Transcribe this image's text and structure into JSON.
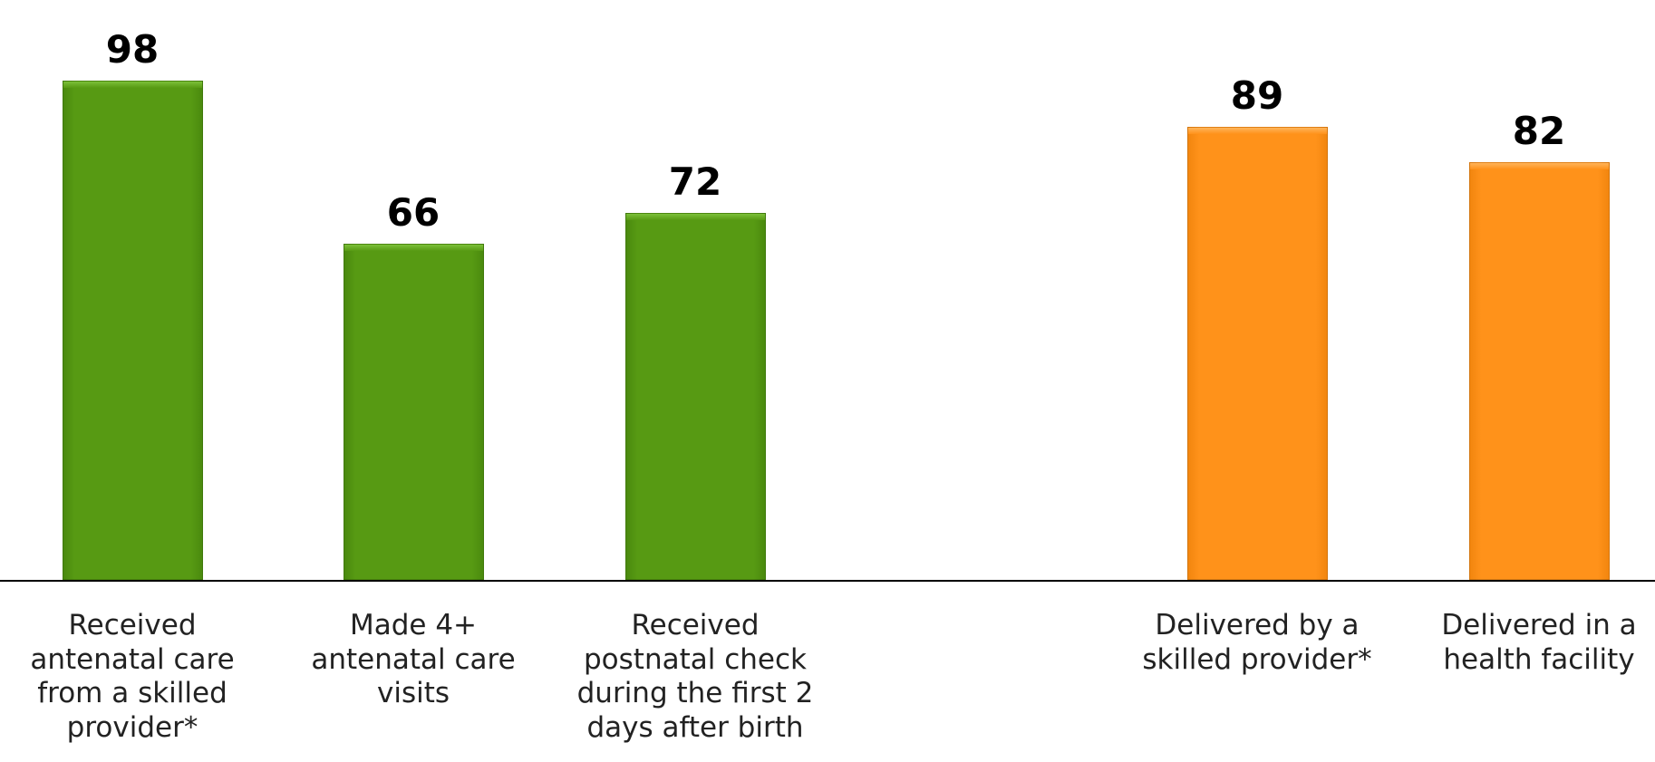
{
  "chart_data": {
    "type": "bar",
    "ylim": [
      0,
      100
    ],
    "grid": false,
    "categories": [
      "Received antenatal care from a skilled provider*",
      "Made 4+ antenatal care visits",
      "Received postnatal check during the first 2 days after birth",
      "Delivered by a skilled provider*",
      "Delivered in a health facility"
    ],
    "category_label_lines": [
      "Received\nantenatal care\nfrom a skilled\nprovider*",
      "Made 4+\nantenatal care\nvisits",
      "Received\npostnatal check\nduring the first 2\ndays after birth",
      "Delivered by a\nskilled provider*",
      "Delivered in a\nhealth facility"
    ],
    "values": [
      98,
      66,
      72,
      89,
      82
    ],
    "value_labels": [
      "98",
      "66",
      "72",
      "89",
      "82"
    ],
    "bar_colors": [
      "#579a13",
      "#579a13",
      "#579a13",
      "#ff921a",
      "#ff921a"
    ],
    "bar_color_classes": [
      "green",
      "green",
      "green",
      "orange",
      "orange"
    ]
  }
}
